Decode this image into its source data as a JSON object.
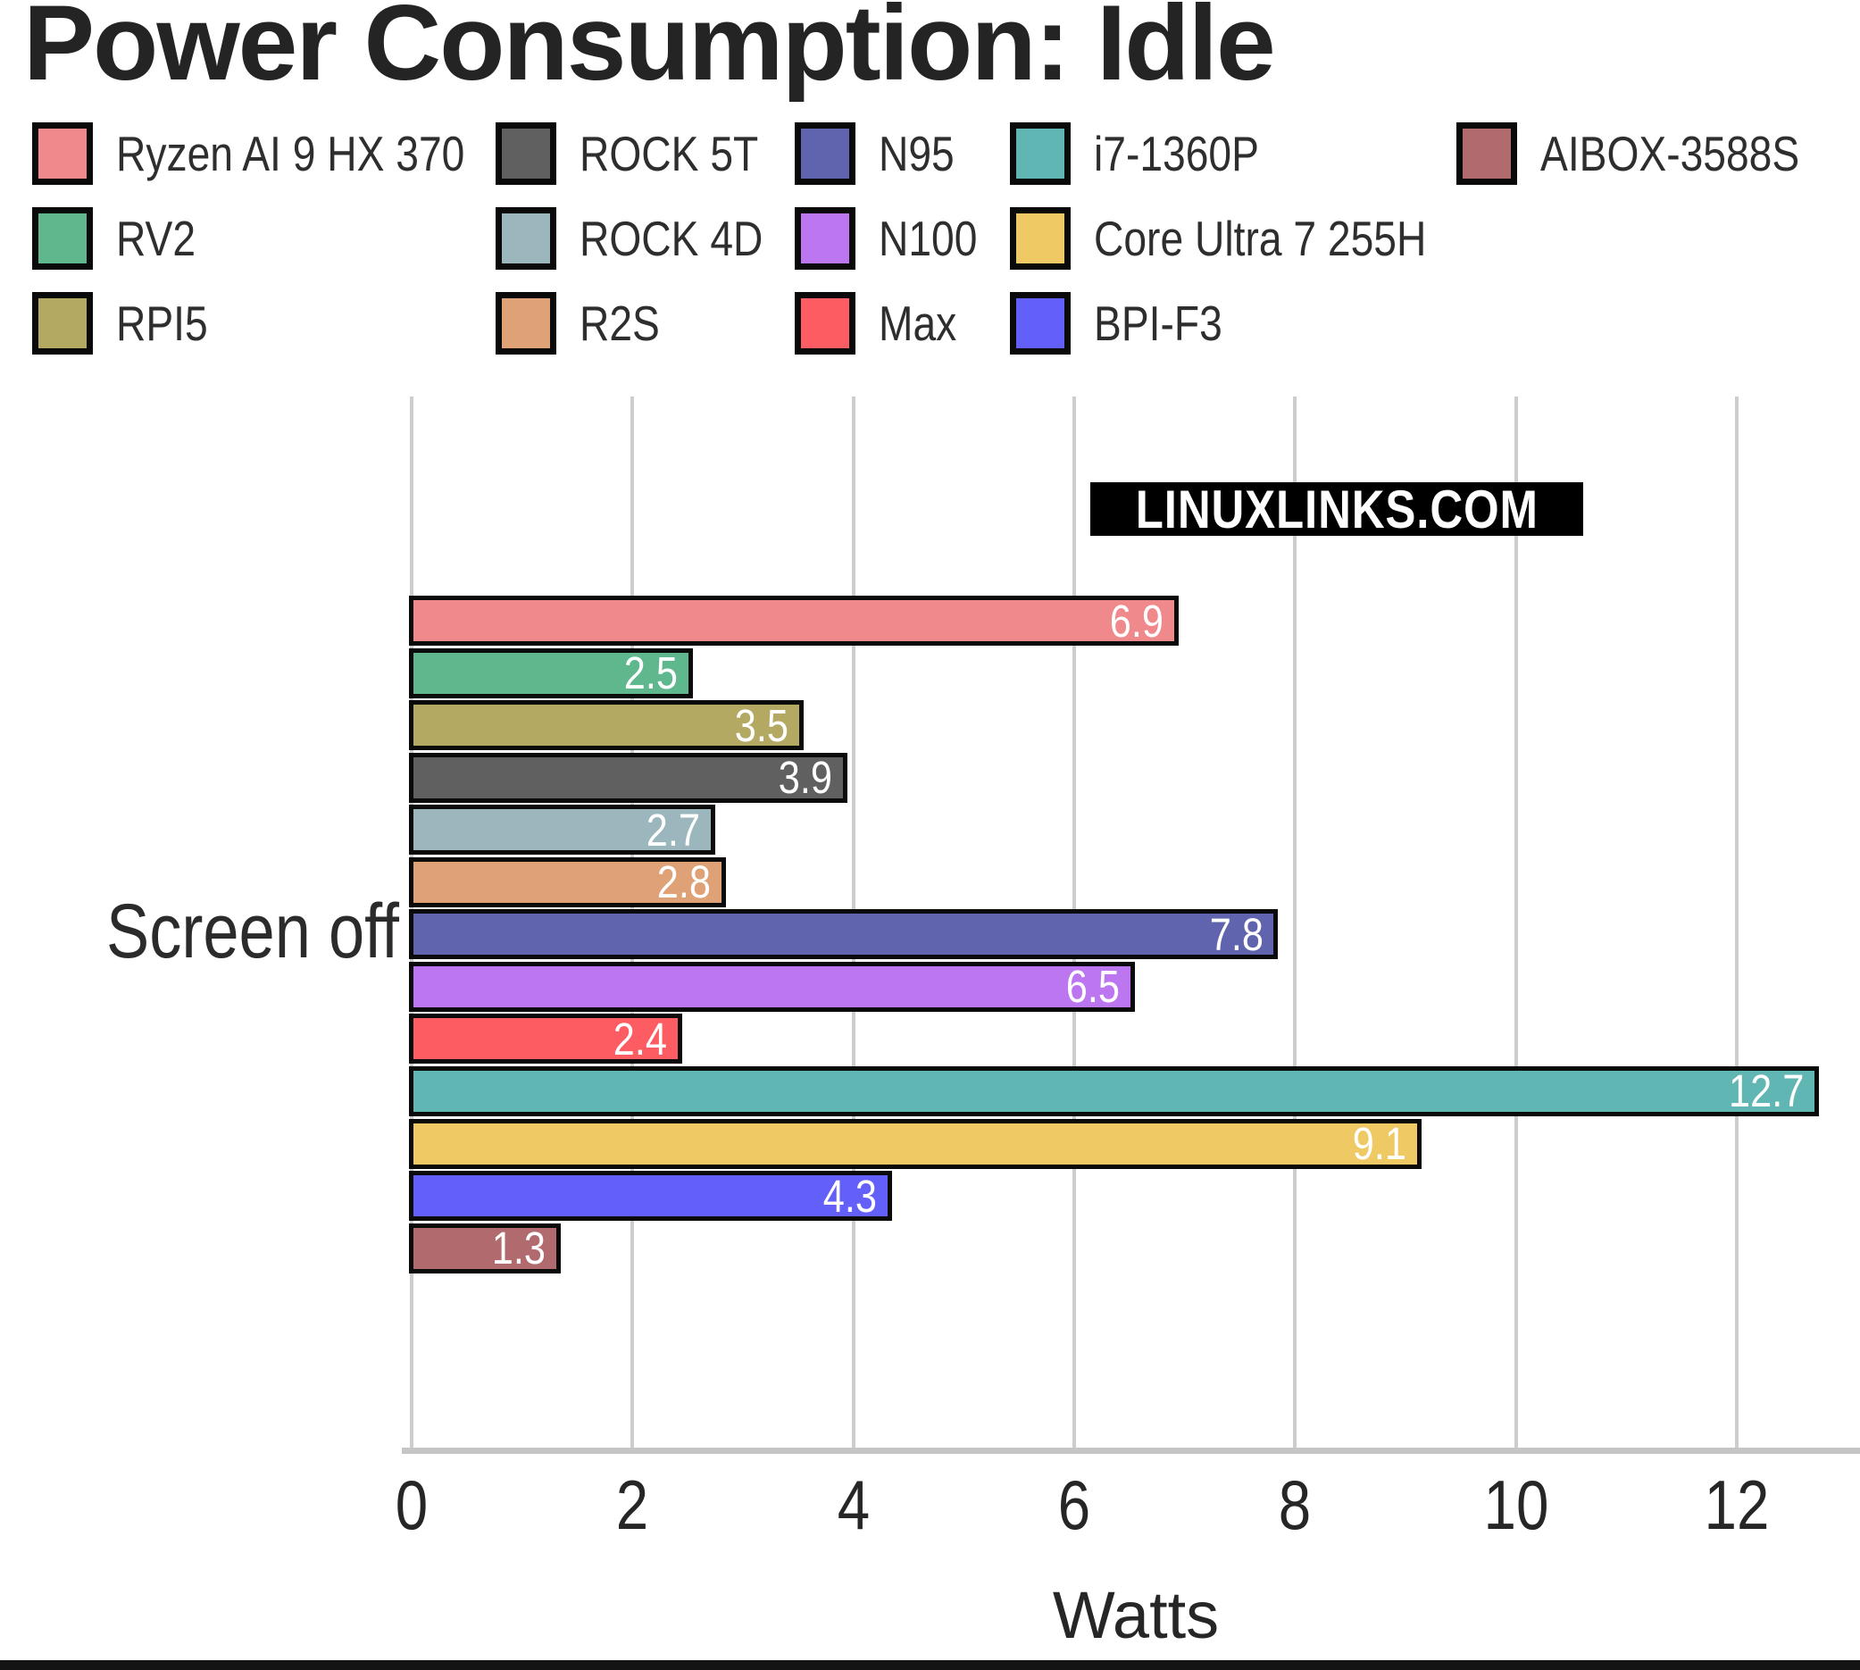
{
  "title": "Power Consumption: Idle",
  "watermark": "LINUXLINKS.COM",
  "chart_data": {
    "type": "bar",
    "orientation": "horizontal",
    "title": "Power Consumption: Idle",
    "categories": [
      "Screen off"
    ],
    "xlabel": "Watts",
    "xlim": [
      0,
      13.1
    ],
    "xticks": [
      0,
      2,
      4,
      6,
      8,
      10,
      12
    ],
    "grid": true,
    "legend_position": "top",
    "value_labels_shown": true,
    "series": [
      {
        "name": "Ryzen AI 9 HX 370",
        "value": 6.9,
        "color": "#F0898B"
      },
      {
        "name": "RV2",
        "value": 2.5,
        "color": "#5FB78D"
      },
      {
        "name": "RPI5",
        "value": 3.5,
        "color": "#B4A963"
      },
      {
        "name": "ROCK 5T",
        "value": 3.9,
        "color": "#606060"
      },
      {
        "name": "ROCK 4D",
        "value": 2.7,
        "color": "#9BB7BD"
      },
      {
        "name": "R2S",
        "value": 2.8,
        "color": "#DFA277"
      },
      {
        "name": "N95",
        "value": 7.8,
        "color": "#6064AE"
      },
      {
        "name": "N100",
        "value": 6.5,
        "color": "#BC77F0"
      },
      {
        "name": "Max",
        "value": 2.4,
        "color": "#FD5C62"
      },
      {
        "name": "i7-1360P",
        "value": 12.7,
        "color": "#60B6B2"
      },
      {
        "name": "Core Ultra 7 255H",
        "value": 9.1,
        "color": "#EFC963"
      },
      {
        "name": "BPI-F3",
        "value": 4.3,
        "color": "#6260F8"
      },
      {
        "name": "AIBOX-3588S",
        "value": 1.3,
        "color": "#B16A6D"
      }
    ]
  }
}
